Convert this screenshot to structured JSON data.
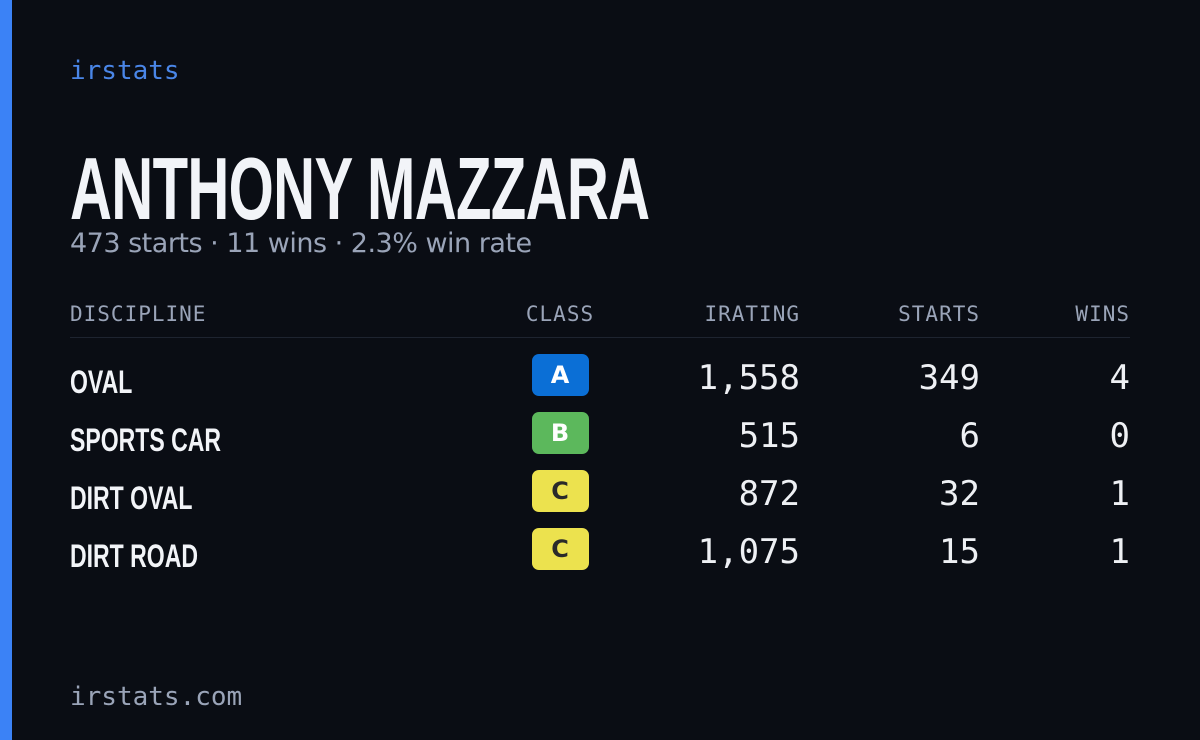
{
  "brand": "irstats",
  "driver": {
    "name": "ANTHONY MAZZARA",
    "summary": "473 starts · 11 wins · 2.3% win rate"
  },
  "table": {
    "headers": [
      "DISCIPLINE",
      "CLASS",
      "IRATING",
      "STARTS",
      "WINS"
    ],
    "rows": [
      {
        "discipline": "OVAL",
        "class": "A",
        "class_color": "#0b6fd6",
        "class_text_color": "#ffffff",
        "irating": "1,558",
        "starts": "349",
        "wins": "4"
      },
      {
        "discipline": "SPORTS CAR",
        "class": "B",
        "class_color": "#5cb85c",
        "class_text_color": "#ffffff",
        "irating": "515",
        "starts": "6",
        "wins": "0"
      },
      {
        "discipline": "DIRT OVAL",
        "class": "C",
        "class_color": "#ece24e",
        "class_text_color": "#2a2a2a",
        "irating": "872",
        "starts": "32",
        "wins": "1"
      },
      {
        "discipline": "DIRT ROAD",
        "class": "C",
        "class_color": "#ece24e",
        "class_text_color": "#2a2a2a",
        "irating": "1,075",
        "starts": "15",
        "wins": "1"
      }
    ]
  },
  "footer": "irstats.com"
}
